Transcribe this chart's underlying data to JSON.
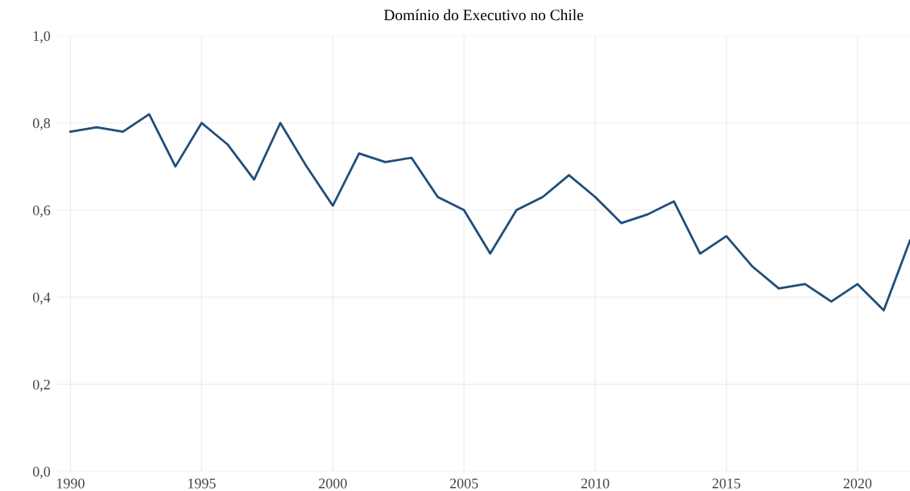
{
  "chart_data": {
    "type": "line",
    "title": "Domínio do Executivo no Chile",
    "x": [
      1990,
      1991,
      1992,
      1993,
      1994,
      1995,
      1996,
      1997,
      1998,
      1999,
      2000,
      2001,
      2002,
      2003,
      2004,
      2005,
      2006,
      2007,
      2008,
      2009,
      2010,
      2011,
      2012,
      2013,
      2014,
      2015,
      2016,
      2017,
      2018,
      2019,
      2020,
      2021,
      2022
    ],
    "series": [
      {
        "color": "#1f4e7a",
        "values": [
          0.78,
          0.79,
          0.78,
          0.82,
          0.7,
          0.8,
          0.75,
          0.67,
          0.8,
          0.7,
          0.61,
          0.73,
          0.71,
          0.72,
          0.63,
          0.6,
          0.5,
          0.6,
          0.63,
          0.68,
          0.63,
          0.57,
          0.59,
          0.62,
          0.5,
          0.54,
          0.47,
          0.42,
          0.43,
          0.39,
          0.43,
          0.37,
          0.53
        ]
      }
    ],
    "xlim": [
      1989.5,
      2022
    ],
    "xticks": [
      1990,
      1995,
      2000,
      2005,
      2010,
      2015,
      2020
    ],
    "ylim": [
      0,
      1
    ],
    "yticks": [
      {
        "value": 0,
        "label": "0,0"
      },
      {
        "value": 0.2,
        "label": "0,2"
      },
      {
        "value": 0.4,
        "label": "0,4"
      },
      {
        "value": 0.6,
        "label": "0,6"
      },
      {
        "value": 0.8,
        "label": "0,8"
      },
      {
        "value": 1,
        "label": "1,0"
      }
    ],
    "grid": true,
    "marker": "none",
    "line_style": "solid"
  }
}
